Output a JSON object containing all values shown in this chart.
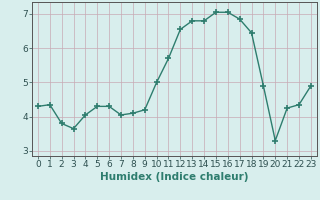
{
  "x": [
    0,
    1,
    2,
    3,
    4,
    5,
    6,
    7,
    8,
    9,
    10,
    11,
    12,
    13,
    14,
    15,
    16,
    17,
    18,
    19,
    20,
    21,
    22,
    23
  ],
  "y": [
    4.3,
    4.35,
    3.8,
    3.65,
    4.05,
    4.3,
    4.3,
    4.05,
    4.1,
    4.2,
    5.0,
    5.7,
    6.55,
    6.8,
    6.8,
    7.05,
    7.05,
    6.85,
    6.45,
    4.9,
    3.3,
    4.25,
    4.35,
    4.9
  ],
  "line_color": "#2e7d6e",
  "marker": "+",
  "marker_size": 4,
  "linewidth": 1.0,
  "xlabel": "Humidex (Indice chaleur)",
  "xlim": [
    -0.5,
    23.5
  ],
  "ylim": [
    2.85,
    7.35
  ],
  "yticks": [
    3,
    4,
    5,
    6,
    7
  ],
  "xticks": [
    0,
    1,
    2,
    3,
    4,
    5,
    6,
    7,
    8,
    9,
    10,
    11,
    12,
    13,
    14,
    15,
    16,
    17,
    18,
    19,
    20,
    21,
    22,
    23
  ],
  "grid_color": "#c8aab4",
  "bg_color": "#d8eeed",
  "xlabel_color": "#2e7d6e",
  "tick_color": "#2e5050",
  "xlabel_fontsize": 7.5,
  "tick_fontsize": 6.5
}
